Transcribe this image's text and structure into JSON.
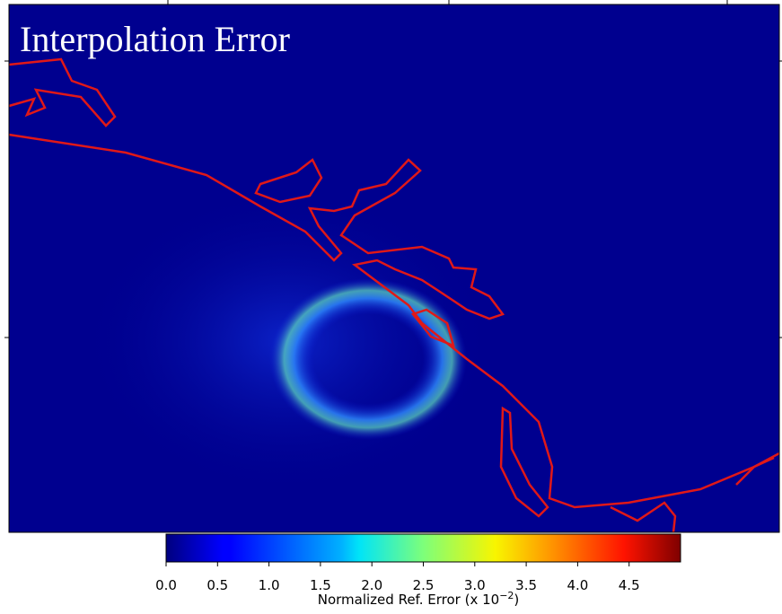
{
  "chart_data": {
    "type": "heatmap",
    "title": "Interpolation Error",
    "colormap": "jet",
    "clim": [
      0,
      5.0
    ],
    "cticks": [
      {
        "value": 0,
        "label": "0.0"
      },
      {
        "value": 0.5,
        "label": "0.5"
      },
      {
        "value": 1,
        "label": "1.0"
      },
      {
        "value": 1.5,
        "label": "1.5"
      },
      {
        "value": 2,
        "label": "2.0"
      },
      {
        "value": 2.5,
        "label": "2.5"
      },
      {
        "value": 3,
        "label": "3.0"
      },
      {
        "value": 3.5,
        "label": "3.5"
      },
      {
        "value": 4,
        "label": "4.0"
      },
      {
        "value": 4.5,
        "label": "4.5"
      }
    ],
    "colorbar_label": {
      "text": "Normalized Ref. Error (x 10",
      "exponent": "−2",
      "suffix": ")"
    }
  }
}
